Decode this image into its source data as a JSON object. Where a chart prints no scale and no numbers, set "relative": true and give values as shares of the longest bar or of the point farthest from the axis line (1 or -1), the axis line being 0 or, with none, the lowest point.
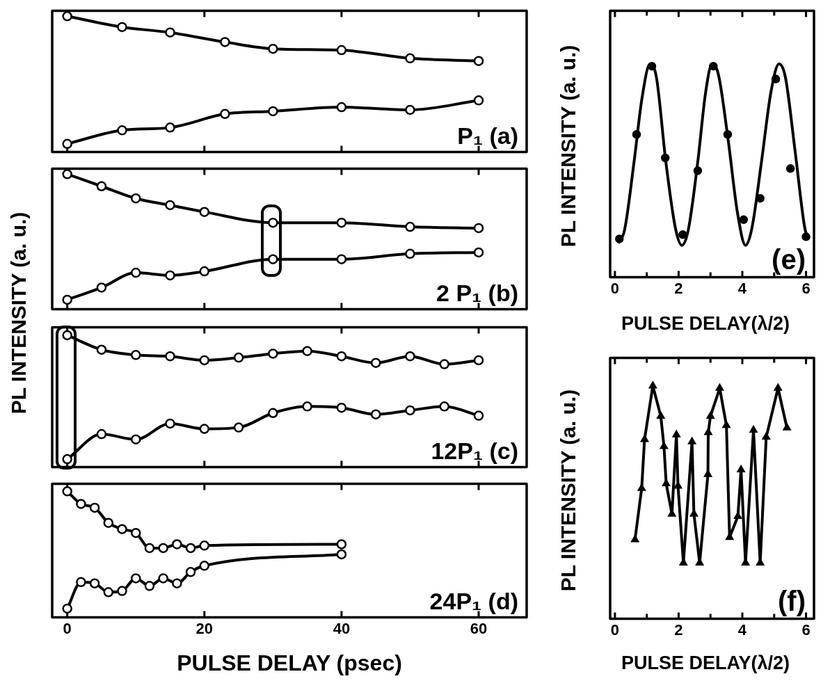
{
  "chart_data": [
    {
      "type": "line",
      "relative": true,
      "tick_labels": false,
      "xlim": [
        -2.2,
        67
      ],
      "xticks": [
        0,
        20,
        40,
        60
      ],
      "annotations": [
        "P₁ (a)"
      ],
      "series": [
        {
          "color": "#000000",
          "marker": "circle",
          "x": [
            0,
            8,
            15,
            23,
            30,
            40,
            50,
            60
          ],
          "values": [
            1,
            0.92,
            0.88,
            0.81,
            0.76,
            0.75,
            0.69,
            0.67
          ]
        },
        {
          "color": "#000000",
          "marker": "circle",
          "x": [
            0,
            8,
            15,
            23,
            30,
            40,
            50,
            60
          ],
          "values": [
            0.06,
            0.16,
            0.18,
            0.28,
            0.3,
            0.33,
            0.31,
            0.38
          ]
        }
      ]
    },
    {
      "type": "line",
      "relative": true,
      "tick_labels": false,
      "xlim": [
        -2.2,
        67
      ],
      "xticks": [
        0,
        20,
        40,
        60
      ],
      "ylabel": "PL INTENSITY (a. u.)",
      "annotations": [
        "2 P₁ (b)"
      ],
      "series": [
        {
          "color": "#000000",
          "marker": "circle",
          "x": [
            0,
            5,
            10,
            15,
            20,
            30,
            40,
            50,
            60
          ],
          "values": [
            1,
            0.91,
            0.82,
            0.77,
            0.72,
            0.64,
            0.64,
            0.61,
            0.6
          ]
        },
        {
          "color": "#000000",
          "marker": "circle",
          "x": [
            0,
            5,
            10,
            15,
            20,
            30,
            40,
            50,
            60
          ],
          "values": [
            0.07,
            0.16,
            0.27,
            0.25,
            0.28,
            0.37,
            0.37,
            0.41,
            0.42
          ]
        }
      ]
    },
    {
      "type": "line",
      "relative": true,
      "tick_labels": false,
      "xlim": [
        -2.2,
        67
      ],
      "xticks": [
        0,
        20,
        40,
        60
      ],
      "annotations": [
        "12P₁ (c)"
      ],
      "series": [
        {
          "color": "#000000",
          "marker": "circle",
          "x": [
            0,
            5,
            10,
            15,
            20,
            25,
            30,
            35,
            40,
            45,
            50,
            55,
            60
          ],
          "values": [
            1,
            0.89,
            0.85,
            0.84,
            0.81,
            0.83,
            0.86,
            0.88,
            0.84,
            0.79,
            0.84,
            0.78,
            0.81
          ]
        },
        {
          "color": "#000000",
          "marker": "circle",
          "x": [
            0,
            5,
            10,
            15,
            20,
            25,
            30,
            35,
            40,
            45,
            50,
            55,
            60
          ],
          "values": [
            0.06,
            0.25,
            0.21,
            0.33,
            0.29,
            0.3,
            0.41,
            0.46,
            0.45,
            0.4,
            0.43,
            0.46,
            0.39
          ]
        }
      ]
    },
    {
      "type": "line",
      "relative": true,
      "tick_labels": "x",
      "xlim": [
        -2.2,
        67
      ],
      "xticks": [
        0,
        20,
        40,
        60
      ],
      "xlabel": "PULSE DELAY (psec)",
      "annotations": [
        "24P₁ (d)"
      ],
      "series": [
        {
          "color": "#000000",
          "marker": "circle",
          "x": [
            0,
            2,
            4,
            6,
            8,
            10,
            12,
            14,
            16,
            18,
            20,
            40
          ],
          "values": [
            1,
            0.9,
            0.87,
            0.75,
            0.7,
            0.67,
            0.55,
            0.55,
            0.58,
            0.55,
            0.57,
            0.58
          ]
        },
        {
          "color": "#000000",
          "marker": "circle",
          "x": [
            0,
            2,
            4,
            6,
            8,
            10,
            12,
            14,
            16,
            18,
            20,
            40
          ],
          "values": [
            0.07,
            0.28,
            0.27,
            0.2,
            0.21,
            0.31,
            0.25,
            0.31,
            0.27,
            0.36,
            0.41,
            0.5
          ]
        }
      ]
    },
    {
      "type": "scatter",
      "relative": true,
      "tick_labels": "x",
      "xlim": [
        -0.15,
        6.25
      ],
      "xticks": [
        0,
        {
          "value": 1,
          "label": null
        },
        2,
        {
          "value": 3,
          "label": null
        },
        4,
        {
          "value": 5,
          "label": null
        },
        6
      ],
      "xlabel": "PULSE DELAY(λ/2)",
      "ylabel": "PL INTENSITY (a. u.)",
      "annotations": [
        "(e)"
      ],
      "series": [
        {
          "color": "#000000",
          "marker": "circle",
          "x": [
            0.14,
            0.68,
            1.16,
            1.58,
            2.13,
            2.6,
            3.09,
            3.54,
            4.04,
            4.56,
            5.05,
            5.51,
            6.0
          ],
          "values": [
            0.18,
            0.67,
            0.99,
            0.56,
            0.2,
            0.5,
            0.99,
            0.67,
            0.27,
            0.37,
            0.93,
            0.51,
            0.19
          ]
        },
        {
          "type": "line",
          "color": "#000000",
          "marker": "none",
          "x": [
            0.1,
            0.3,
            0.6,
            0.85,
            1.1,
            1.3,
            1.6,
            1.9,
            2.1,
            2.3,
            2.6,
            2.85,
            3.05,
            3.25,
            3.55,
            3.85,
            4.1,
            4.3,
            4.6,
            4.9,
            5.15,
            5.35,
            5.65,
            5.95,
            6.05
          ],
          "values": [
            0.16,
            0.22,
            0.54,
            0.84,
            1,
            0.94,
            0.54,
            0.23,
            0.15,
            0.22,
            0.54,
            0.87,
            1,
            0.95,
            0.65,
            0.3,
            0.15,
            0.23,
            0.54,
            0.87,
            1,
            0.94,
            0.6,
            0.24,
            0.18
          ]
        }
      ]
    },
    {
      "type": "line",
      "relative": true,
      "tick_labels": "x",
      "xlim": [
        -0.15,
        6.25
      ],
      "xticks": [
        0,
        {
          "value": 1,
          "label": null
        },
        2,
        {
          "value": 3,
          "label": null
        },
        4,
        {
          "value": 5,
          "label": null
        },
        6
      ],
      "xlabel": "PULSE DELAY(λ/2)",
      "ylabel": "PL INTENSITY (a. u.)",
      "annotations": [
        "(f)"
      ],
      "series": [
        {
          "color": "#000000",
          "marker": "triangle",
          "x": [
            0.63,
            0.84,
            0.93,
            1.19,
            1.44,
            1.54,
            1.61,
            1.79,
            1.93,
            1.98,
            2.15,
            2.42,
            2.48,
            2.66,
            2.92,
            2.93,
            3.0,
            3.29,
            3.5,
            3.6,
            3.86,
            3.96,
            4.1,
            4.35,
            4.56,
            4.75,
            5.12,
            5.4
          ],
          "values": [
            0.34,
            0.56,
            0.77,
            1,
            0.87,
            0.74,
            0.58,
            0.45,
            0.79,
            0.57,
            0.24,
            0.76,
            0.45,
            0.24,
            0.62,
            0.8,
            0.87,
            0.99,
            0.83,
            0.35,
            0.44,
            0.64,
            0.24,
            0.81,
            0.24,
            0.78,
            0.99,
            0.82
          ]
        }
      ]
    }
  ]
}
